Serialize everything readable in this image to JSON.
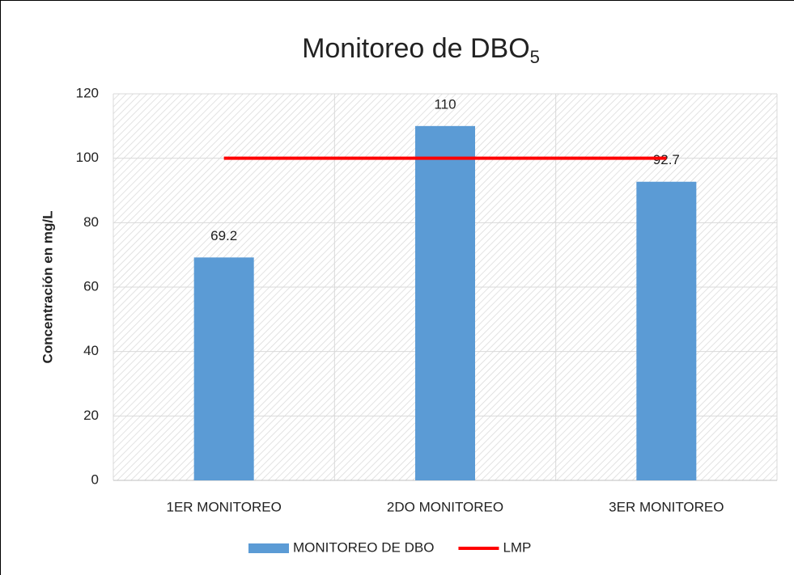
{
  "chart_data": {
    "type": "bar",
    "title": "Monitoreo de DBO",
    "title_sub": "5",
    "ylabel": "Concentración en mg/L",
    "categories": [
      "1ER MONITOREO",
      "2DO MONITOREO",
      "3ER MONITOREO"
    ],
    "series": [
      {
        "name": "MONITOREO DE DBO",
        "type": "bar",
        "color": "#5b9bd5",
        "values": [
          69.2,
          110,
          92.7
        ]
      },
      {
        "name": "LMP",
        "type": "line",
        "color": "#ff0000",
        "values": [
          100,
          100,
          100
        ]
      }
    ],
    "ylim": [
      0,
      120
    ],
    "yticks": [
      0,
      20,
      40,
      60,
      80,
      100,
      120
    ],
    "grid": true,
    "legend": "bottom"
  }
}
